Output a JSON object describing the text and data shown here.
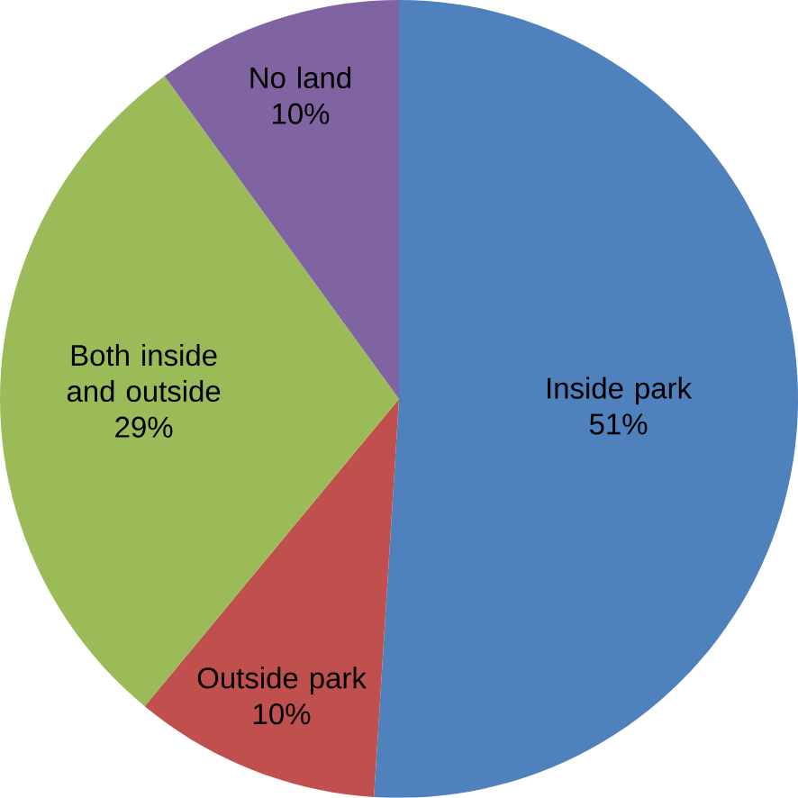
{
  "chart_data": {
    "type": "pie",
    "categories": [
      "Inside park",
      "Outside park",
      "Both inside and outside",
      "No land"
    ],
    "values": [
      51,
      10,
      29,
      10
    ],
    "value_labels": [
      "51%",
      "10%",
      "29%",
      "10%"
    ],
    "colors": [
      "#4f81bd",
      "#c0504d",
      "#9bbb59",
      "#8064a2"
    ]
  }
}
